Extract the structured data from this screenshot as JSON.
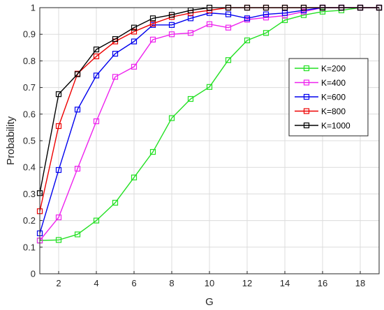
{
  "chart_data": {
    "type": "line",
    "xlabel": "G",
    "ylabel": "Probability",
    "xlim": [
      1,
      19
    ],
    "ylim": [
      0,
      1
    ],
    "xticks": [
      2,
      4,
      6,
      8,
      10,
      12,
      14,
      16,
      18
    ],
    "yticks": [
      0,
      0.1,
      0.2,
      0.3,
      0.4,
      0.5,
      0.6,
      0.7,
      0.8,
      0.9,
      1
    ],
    "grid": true,
    "legend_position": "right",
    "x": [
      1,
      2,
      3,
      4,
      5,
      6,
      7,
      8,
      9,
      10,
      11,
      12,
      13,
      14,
      15,
      16,
      17,
      18,
      19
    ],
    "series": [
      {
        "name": "K=200",
        "color": "#22e022",
        "marker": "square",
        "values": [
          0.125,
          0.127,
          0.148,
          0.2,
          0.267,
          0.362,
          0.458,
          0.585,
          0.657,
          0.702,
          0.803,
          0.877,
          0.905,
          0.953,
          0.972,
          0.985,
          0.99,
          1,
          1
        ]
      },
      {
        "name": "K=400",
        "color": "#ee22ee",
        "marker": "square",
        "values": [
          0.125,
          0.212,
          0.395,
          0.573,
          0.74,
          0.778,
          0.88,
          0.9,
          0.905,
          0.938,
          0.925,
          0.955,
          0.963,
          0.97,
          0.985,
          1,
          1,
          1,
          1
        ]
      },
      {
        "name": "K=600",
        "color": "#0000ee",
        "marker": "square",
        "values": [
          0.152,
          0.39,
          0.617,
          0.745,
          0.827,
          0.873,
          0.935,
          0.935,
          0.96,
          0.98,
          0.975,
          0.96,
          0.975,
          0.98,
          0.99,
          1,
          1,
          1,
          1
        ]
      },
      {
        "name": "K=800",
        "color": "#ee0000",
        "marker": "square",
        "values": [
          0.235,
          0.555,
          0.752,
          0.817,
          0.873,
          0.91,
          0.94,
          0.965,
          0.98,
          0.99,
          1,
          1,
          1,
          1,
          1,
          1,
          1,
          1,
          1
        ]
      },
      {
        "name": "K=1000",
        "color": "#000000",
        "marker": "square",
        "values": [
          0.303,
          0.675,
          0.75,
          0.843,
          0.882,
          0.925,
          0.96,
          0.973,
          0.99,
          1,
          1,
          1,
          1,
          1,
          1,
          1,
          1,
          1,
          1
        ]
      }
    ]
  }
}
